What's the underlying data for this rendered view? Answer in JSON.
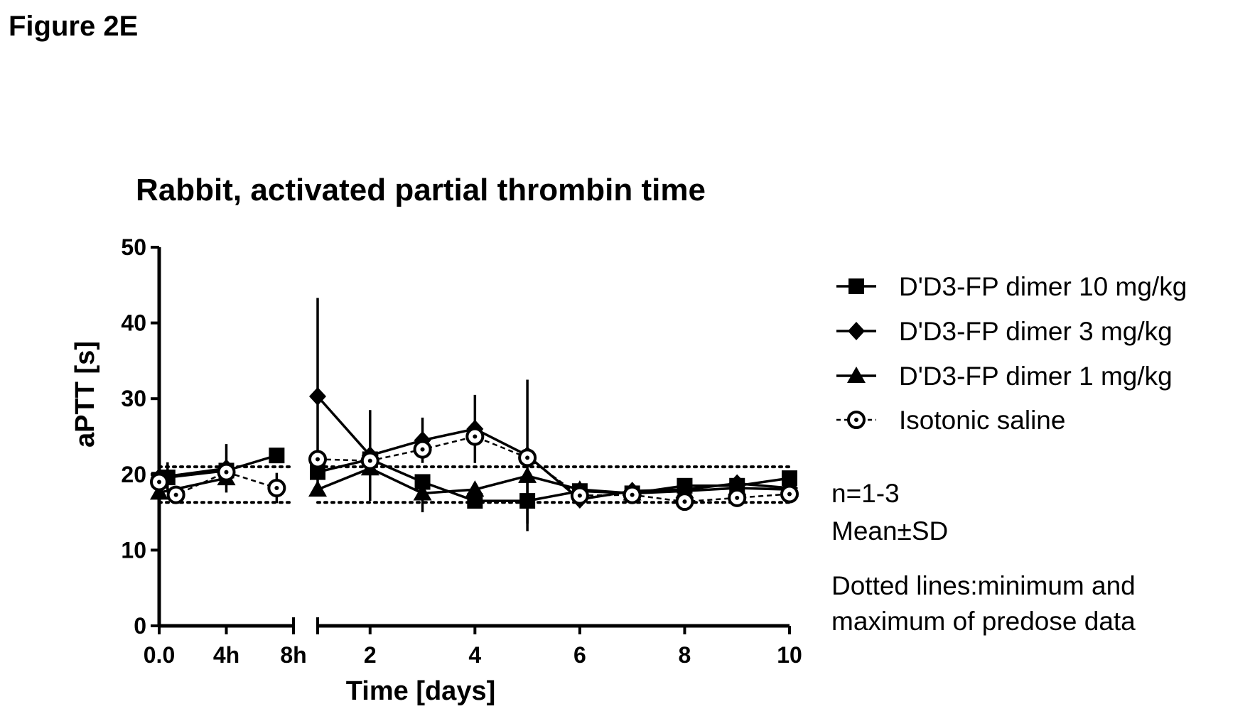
{
  "figure_label": "Figure 2E",
  "notes": [
    "n=1-3",
    "Mean±SD",
    "Dotted lines:minimum and",
    "maximum of predose data"
  ],
  "chart_data": {
    "type": "line",
    "title": "Rabbit, activated partial thrombin time",
    "xlabel": "Time [days]",
    "ylabel": "aPTT [s]",
    "ylim": [
      0,
      50
    ],
    "yticks": [
      0,
      10,
      20,
      30,
      40,
      50
    ],
    "x_axis": {
      "segments": [
        {
          "unit": "hours",
          "range": [
            0,
            8
          ],
          "ticks": [
            0,
            4,
            8
          ],
          "tick_labels": [
            "0.0",
            "4h",
            "8h"
          ]
        },
        {
          "unit": "days",
          "range": [
            1,
            10
          ],
          "ticks": [
            2,
            4,
            6,
            8,
            10
          ],
          "tick_labels": [
            "2",
            "4",
            "6",
            "8",
            "10"
          ]
        }
      ]
    },
    "reference_lines": {
      "style": "dotted",
      "values": [
        16.3,
        21.0
      ]
    },
    "series": [
      {
        "name": "D'D3-FP dimer 10 mg/kg",
        "marker": "square",
        "line": "solid",
        "points": [
          {
            "seg": 0,
            "x": 0,
            "y": 19.3
          },
          {
            "seg": 0,
            "x": 0.5,
            "y": 19.6,
            "sd": 2.0
          },
          {
            "seg": 0,
            "x": 4,
            "y": 20.5
          },
          {
            "seg": 0,
            "x": 7,
            "y": 22.5
          },
          {
            "seg": 1,
            "x": 1,
            "y": 20.3
          },
          {
            "seg": 1,
            "x": 2,
            "y": 22.0
          },
          {
            "seg": 1,
            "x": 3,
            "y": 19.0
          },
          {
            "seg": 1,
            "x": 4,
            "y": 16.5
          },
          {
            "seg": 1,
            "x": 5,
            "y": 16.5,
            "sd": 3.0
          },
          {
            "seg": 1,
            "x": 6,
            "y": 17.8
          },
          {
            "seg": 1,
            "x": 7,
            "y": 17.5
          },
          {
            "seg": 1,
            "x": 8,
            "y": 18.5
          },
          {
            "seg": 1,
            "x": 9,
            "y": 18.5
          },
          {
            "seg": 1,
            "x": 10,
            "y": 19.5
          }
        ]
      },
      {
        "name": "D'D3-FP dimer 3 mg/kg",
        "marker": "diamond",
        "line": "solid",
        "points": [
          {
            "seg": 0,
            "x": 0,
            "y": 19.6
          },
          {
            "seg": 0,
            "x": 4,
            "y": 20.8,
            "sd": 3.2
          },
          {
            "seg": 1,
            "x": 1,
            "y": 30.3,
            "sd": 13.0
          },
          {
            "seg": 1,
            "x": 2,
            "y": 22.5,
            "sd": 6.0
          },
          {
            "seg": 1,
            "x": 3,
            "y": 24.5,
            "sd": 3.0
          },
          {
            "seg": 1,
            "x": 4,
            "y": 26.0,
            "sd": 4.5
          },
          {
            "seg": 1,
            "x": 5,
            "y": 22.5,
            "sd": 10.0
          },
          {
            "seg": 1,
            "x": 6,
            "y": 16.7
          },
          {
            "seg": 1,
            "x": 7,
            "y": 17.8
          },
          {
            "seg": 1,
            "x": 8,
            "y": 18.0
          },
          {
            "seg": 1,
            "x": 9,
            "y": 18.8
          },
          {
            "seg": 1,
            "x": 10,
            "y": 18.2
          }
        ]
      },
      {
        "name": "D'D3-FP dimer 1 mg/kg",
        "marker": "triangle",
        "line": "solid",
        "points": [
          {
            "seg": 0,
            "x": 0,
            "y": 17.6
          },
          {
            "seg": 0,
            "x": 4,
            "y": 19.5
          },
          {
            "seg": 1,
            "x": 1,
            "y": 18.0
          },
          {
            "seg": 1,
            "x": 2,
            "y": 20.8
          },
          {
            "seg": 1,
            "x": 3,
            "y": 17.5,
            "sd": 2.5
          },
          {
            "seg": 1,
            "x": 4,
            "y": 18.0
          },
          {
            "seg": 1,
            "x": 5,
            "y": 19.8
          },
          {
            "seg": 1,
            "x": 6,
            "y": 18.0
          },
          {
            "seg": 1,
            "x": 7,
            "y": 17.5
          },
          {
            "seg": 1,
            "x": 8,
            "y": 17.8
          },
          {
            "seg": 1,
            "x": 9,
            "y": 18.2
          },
          {
            "seg": 1,
            "x": 10,
            "y": 18.0
          }
        ]
      },
      {
        "name": "Isotonic saline",
        "marker": "circle-dot",
        "line": "dashed",
        "points": [
          {
            "seg": 0,
            "x": 0,
            "y": 19.0
          },
          {
            "seg": 0,
            "x": 1,
            "y": 17.3
          },
          {
            "seg": 0,
            "x": 4,
            "y": 20.3
          },
          {
            "seg": 0,
            "x": 7,
            "y": 18.2,
            "sd": 2.0
          },
          {
            "seg": 1,
            "x": 1,
            "y": 22.0
          },
          {
            "seg": 1,
            "x": 2,
            "y": 21.8
          },
          {
            "seg": 1,
            "x": 3,
            "y": 23.3
          },
          {
            "seg": 1,
            "x": 4,
            "y": 25.0
          },
          {
            "seg": 1,
            "x": 5,
            "y": 22.2
          },
          {
            "seg": 1,
            "x": 6,
            "y": 17.2
          },
          {
            "seg": 1,
            "x": 7,
            "y": 17.3
          },
          {
            "seg": 1,
            "x": 8,
            "y": 16.4
          },
          {
            "seg": 1,
            "x": 9,
            "y": 16.9
          },
          {
            "seg": 1,
            "x": 10,
            "y": 17.4
          }
        ]
      }
    ]
  }
}
